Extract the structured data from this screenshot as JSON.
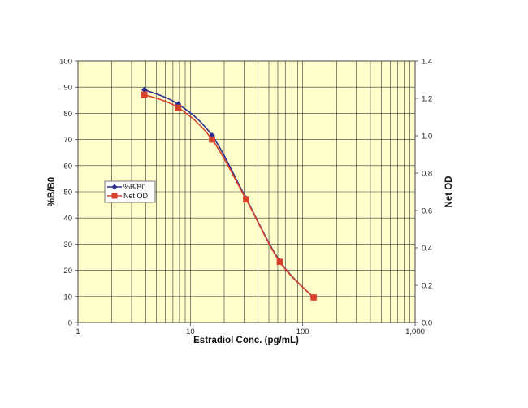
{
  "chart_data": {
    "type": "line",
    "title": "",
    "xlabel": "Estradiol Conc. (pg/mL)",
    "ylabel": "%B/B0",
    "y2label": "Net OD",
    "xscale": "log",
    "xlim": [
      1,
      1000
    ],
    "ylim": [
      0,
      100
    ],
    "y2lim": [
      0.0,
      1.4
    ],
    "x_tick_labels": [
      "1",
      "10",
      "100",
      "1,000"
    ],
    "y_tick_labels": [
      "0",
      "10",
      "20",
      "30",
      "40",
      "50",
      "60",
      "70",
      "80",
      "90",
      "100"
    ],
    "y2_tick_labels": [
      "0.0",
      "0.2",
      "0.4",
      "0.6",
      "0.8",
      "1.0",
      "1.2",
      "1.4"
    ],
    "grid": true,
    "legend_position": "left-middle",
    "series": [
      {
        "name": "%B/B0",
        "axis": "left",
        "color": "#2b2e8f",
        "marker": "diamond",
        "x": [
          3.9,
          7.8,
          15.6,
          31.3,
          62.5,
          125
        ],
        "values": [
          89,
          83.5,
          71.5,
          47.5,
          23.5,
          9.5
        ]
      },
      {
        "name": "Net OD",
        "axis": "right",
        "color": "#d9412b",
        "marker": "square",
        "x": [
          3.9,
          7.8,
          15.6,
          31.3,
          62.5,
          125
        ],
        "values": [
          1.22,
          1.15,
          0.98,
          0.66,
          0.325,
          0.135
        ]
      }
    ],
    "colors": {
      "plot_background": "#ffffcc",
      "gridline": "#333333",
      "frame": "#444444"
    }
  }
}
